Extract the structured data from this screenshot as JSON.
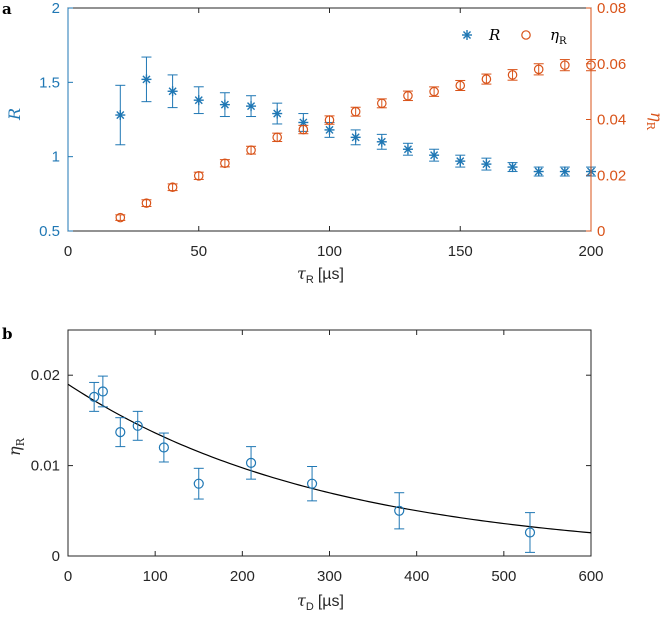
{
  "colors": {
    "blue": "#1f77b4",
    "orange": "#d95319",
    "black": "#000000"
  },
  "chart_data": [
    {
      "panel_label": "a",
      "type": "scatter",
      "xlabel": "τR [µs]",
      "xlabel_symbol": "τ",
      "xlabel_sub": "R",
      "xlabel_unit": "[µs]",
      "xlim": [
        0,
        200
      ],
      "xticks": [
        0,
        50,
        100,
        150,
        200
      ],
      "y_left": {
        "label": "R",
        "lim": [
          0.5,
          2
        ],
        "ticks": [
          0.5,
          1,
          1.5,
          2
        ],
        "tick_labels": [
          "0.5",
          "1",
          "1.5",
          "2"
        ]
      },
      "y_right": {
        "label": "ηR",
        "label_symbol": "η",
        "label_sub": "R",
        "lim": [
          0,
          0.08
        ],
        "ticks": [
          0,
          0.02,
          0.04,
          0.06,
          0.08
        ],
        "tick_labels": [
          "0",
          "0.02",
          "0.04",
          "0.06",
          "0.08"
        ]
      },
      "legend": {
        "position": "top-right",
        "entries": [
          {
            "label": "R",
            "marker": "asterisk",
            "color": "#1f77b4"
          },
          {
            "label_symbol": "η",
            "label_sub": "R",
            "marker": "circle",
            "color": "#d95319"
          }
        ]
      },
      "series": [
        {
          "name": "R",
          "axis": "left",
          "marker": "asterisk",
          "color": "#1f77b4",
          "x": [
            20,
            30,
            40,
            50,
            60,
            70,
            80,
            90,
            100,
            110,
            120,
            130,
            140,
            150,
            160,
            170,
            180,
            190,
            200
          ],
          "y": [
            1.28,
            1.52,
            1.44,
            1.38,
            1.35,
            1.34,
            1.29,
            1.23,
            1.18,
            1.13,
            1.1,
            1.05,
            1.01,
            0.97,
            0.95,
            0.93,
            0.9,
            0.9,
            0.9
          ],
          "err": [
            0.2,
            0.15,
            0.11,
            0.09,
            0.08,
            0.07,
            0.07,
            0.06,
            0.05,
            0.05,
            0.05,
            0.04,
            0.04,
            0.04,
            0.04,
            0.03,
            0.03,
            0.03,
            0.03
          ]
        },
        {
          "name": "ηR",
          "axis": "right",
          "marker": "circle",
          "color": "#d95319",
          "x": [
            20,
            30,
            40,
            50,
            60,
            70,
            80,
            90,
            100,
            110,
            120,
            130,
            140,
            150,
            160,
            170,
            180,
            190,
            200
          ],
          "y": [
            0.0048,
            0.01,
            0.0157,
            0.0198,
            0.0243,
            0.029,
            0.0336,
            0.0364,
            0.0398,
            0.0428,
            0.0458,
            0.0485,
            0.05,
            0.0522,
            0.0545,
            0.056,
            0.058,
            0.0595,
            0.0595
          ],
          "err": [
            0.001,
            0.0012,
            0.0012,
            0.0013,
            0.0013,
            0.0014,
            0.0015,
            0.0015,
            0.0015,
            0.0016,
            0.0016,
            0.0017,
            0.0017,
            0.0018,
            0.0018,
            0.0019,
            0.002,
            0.002,
            0.002
          ]
        }
      ]
    },
    {
      "panel_label": "b",
      "type": "scatter",
      "xlabel": "τD [µs]",
      "xlabel_symbol": "τ",
      "xlabel_sub": "D",
      "xlabel_unit": "[µs]",
      "xlim": [
        0,
        600
      ],
      "xticks": [
        0,
        100,
        200,
        300,
        400,
        500,
        600
      ],
      "y_left": {
        "label": "ηR",
        "label_symbol": "η",
        "label_sub": "R",
        "lim": [
          0,
          0.025
        ],
        "ticks": [
          0,
          0.01,
          0.02
        ],
        "tick_labels": [
          "0",
          "0.01",
          "0.02"
        ]
      },
      "series": [
        {
          "name": "ηR measured",
          "marker": "circle",
          "color": "#1f77b4",
          "x": [
            30,
            40,
            60,
            80,
            110,
            150,
            210,
            280,
            380,
            530
          ],
          "y": [
            0.0176,
            0.0182,
            0.0137,
            0.0144,
            0.012,
            0.008,
            0.0103,
            0.008,
            0.005,
            0.0026
          ],
          "err": [
            0.0016,
            0.0017,
            0.0016,
            0.0016,
            0.0016,
            0.0017,
            0.0018,
            0.0019,
            0.002,
            0.0022
          ]
        }
      ],
      "fit": {
        "name": "exponential fit",
        "color": "#000000",
        "function": "a*exp(-x/tau)",
        "a": 0.019,
        "tau": 300,
        "x_range": [
          0,
          600
        ]
      }
    }
  ]
}
